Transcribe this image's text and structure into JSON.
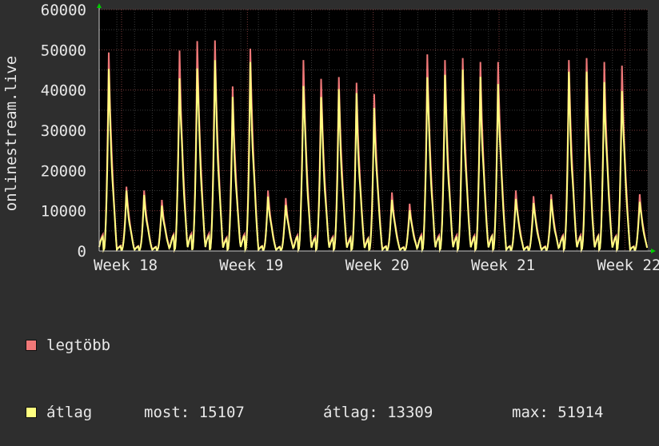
{
  "chart_data": {
    "type": "line",
    "ylabel": "onlinestream.live",
    "ylim": [
      0,
      60000
    ],
    "yticks": [
      "0",
      "10000",
      "20000",
      "30000",
      "40000",
      "50000",
      "60000"
    ],
    "xticks": [
      "Week 18",
      "Week 19",
      "Week 20",
      "Week 21",
      "Week 22"
    ],
    "grid": true,
    "daily_peaks": [
      52500,
      17000,
      16000,
      13500,
      53000,
      55500,
      55700,
      43500,
      53500,
      16000,
      14000,
      50500,
      45500,
      46000,
      44500,
      41500,
      15500,
      12500,
      52000,
      50500,
      51000,
      50000,
      50000,
      16000,
      14500,
      15000,
      50500,
      51000,
      50000,
      49000,
      15000
    ],
    "series": [
      {
        "name": "legtöbb",
        "color": "#f07878"
      },
      {
        "name": "átlag",
        "color": "#ffff80"
      }
    ]
  },
  "legend": {
    "max_label": "legtöbb",
    "avg_label": "átlag",
    "now_text": "most: 15107",
    "avg_text": "átlag: 13309",
    "max_text": "max: 51914"
  }
}
